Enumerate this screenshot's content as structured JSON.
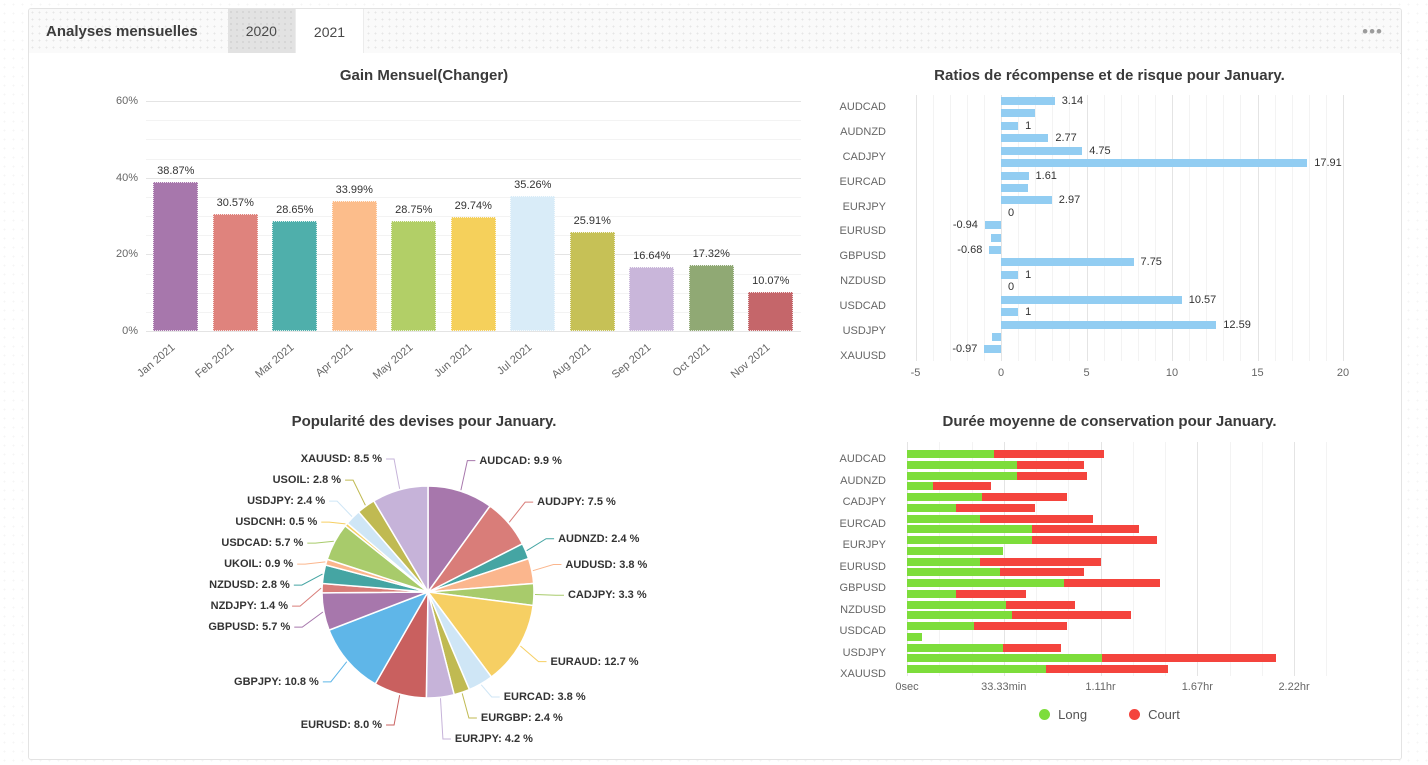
{
  "header": {
    "title": "Analyses mensuelles",
    "tabs": [
      {
        "label": "2020",
        "active": false
      },
      {
        "label": "2021",
        "active": true
      }
    ],
    "menu_glyph": "•••"
  },
  "colors": {
    "bar_blue": "#92cdf2",
    "long_green": "#7ddd3b",
    "court_red": "#f4443d",
    "grid_major": "#e4e4e4",
    "grid_minor": "#f3f3f3",
    "title_text": "#3a3a3a",
    "axis_text": "#666666",
    "value_text": "#333333"
  },
  "chart_data": [
    {
      "id": "monthly-gain",
      "type": "bar",
      "title": "Gain Mensuel(Changer)",
      "categories": [
        "Jan 2021",
        "Feb 2021",
        "Mar 2021",
        "Apr 2021",
        "May 2021",
        "Jun 2021",
        "Jul 2021",
        "Aug 2021",
        "Sep 2021",
        "Oct 2021",
        "Nov 2021"
      ],
      "values": [
        38.87,
        30.57,
        28.65,
        33.99,
        28.75,
        29.74,
        35.26,
        25.91,
        16.64,
        17.32,
        10.07
      ],
      "value_labels": [
        "38.87%",
        "30.57%",
        "28.65%",
        "33.99%",
        "28.75%",
        "29.74%",
        "35.26%",
        "25.91%",
        "16.64%",
        "17.32%",
        "10.07%"
      ],
      "bar_colors": [
        "#a777ac",
        "#df837d",
        "#4fafab",
        "#fcbd8b",
        "#b2cf67",
        "#f5d05b",
        "#d9ecf8",
        "#c6c156",
        "#c9b6da",
        "#90a974",
        "#c5666a"
      ],
      "ylabel": "",
      "xlabel": "",
      "ylim": [
        0,
        62
      ],
      "ytick_values": [
        0,
        20,
        40,
        60
      ],
      "ytick_labels": [
        "0%",
        "20%",
        "40%",
        "60%"
      ],
      "minor_step": 5,
      "grid": true
    },
    {
      "id": "reward-risk",
      "type": "bar",
      "title": "Ratios de récompense et de risque pour January.",
      "categories": [
        "AUDCAD",
        "AUDNZD",
        "CADJPY",
        "EURCAD",
        "EURJPY",
        "EURUSD",
        "GBPUSD",
        "NZDUSD",
        "USDCAD",
        "USDJPY",
        "XAUUSD"
      ],
      "series": [
        {
          "name": "ratio-1",
          "values": [
            3.14,
            1,
            4.75,
            1.61,
            2.97,
            -0.94,
            -0.68,
            1,
            10.57,
            12.59,
            -0.97
          ],
          "labels": [
            "3.14",
            "1",
            "4.75",
            "1.61",
            "2.97",
            "-0.94",
            "-0.68",
            "1",
            "10.57",
            "12.59",
            "-0.97"
          ]
        },
        {
          "name": "ratio-2",
          "values": [
            2,
            2.77,
            17.91,
            1.55,
            0,
            -0.6,
            7.75,
            0,
            1,
            -0.5,
            0
          ],
          "labels": [
            "",
            "2.77",
            "17.91",
            "",
            "0",
            "",
            "7.75",
            "0",
            "1",
            "",
            ""
          ]
        }
      ],
      "xlim": [
        -5.2,
        20.6
      ],
      "xtick_values": [
        -5,
        0,
        5,
        10,
        15,
        20
      ],
      "xtick_labels": [
        "-5",
        "0",
        "5",
        "10",
        "15",
        "20"
      ],
      "minor_unit": 1,
      "grid": true
    },
    {
      "id": "currency-popularity",
      "type": "pie",
      "title": "Popularité des devises pour January.",
      "slices": [
        {
          "name": "AUDCAD",
          "value": 9.9,
          "label": "AUDCAD: 9.9 %",
          "color": "#a777ac"
        },
        {
          "name": "AUDJPY",
          "value": 7.5,
          "label": "AUDJPY: 7.5 %",
          "color": "#d97d79"
        },
        {
          "name": "AUDNZD",
          "value": 2.4,
          "label": "AUDNZD: 2.4 %",
          "color": "#45a5a3"
        },
        {
          "name": "AUDUSD",
          "value": 3.8,
          "label": "AUDUSD: 3.8 %",
          "color": "#fbb68d"
        },
        {
          "name": "CADJPY",
          "value": 3.3,
          "label": "CADJPY: 3.3 %",
          "color": "#a8cb6b"
        },
        {
          "name": "EURAUD",
          "value": 12.7,
          "label": "EURAUD: 12.7 %",
          "color": "#f6cf63"
        },
        {
          "name": "EURCAD",
          "value": 3.8,
          "label": "EURCAD: 3.8 %",
          "color": "#cfe6f6"
        },
        {
          "name": "EURGBP",
          "value": 2.4,
          "label": "EURGBP: 2.4 %",
          "color": "#c0ba52"
        },
        {
          "name": "EURJPY",
          "value": 4.2,
          "label": "EURJPY: 4.2 %",
          "color": "#c6b3d9"
        },
        {
          "name": "EURUSD",
          "value": 8.0,
          "label": "EURUSD: 8.0 %",
          "color": "#c9605f"
        },
        {
          "name": "GBPJPY",
          "value": 10.8,
          "label": "GBPJPY: 10.8 %",
          "color": "#5fb6e8"
        },
        {
          "name": "GBPUSD",
          "value": 5.7,
          "label": "GBPUSD: 5.7 %",
          "color": "#a777ac"
        },
        {
          "name": "NZDJPY",
          "value": 1.4,
          "label": "NZDJPY: 1.4 %",
          "color": "#d97d79"
        },
        {
          "name": "NZDUSD",
          "value": 2.8,
          "label": "NZDUSD: 2.8 %",
          "color": "#45a5a3"
        },
        {
          "name": "UKOIL",
          "value": 0.9,
          "label": "UKOIL: 0.9 %",
          "color": "#fbb68d"
        },
        {
          "name": "USDCAD",
          "value": 5.7,
          "label": "USDCAD: 5.7 %",
          "color": "#a8cb6b"
        },
        {
          "name": "USDCNH",
          "value": 0.5,
          "label": "USDCNH: 0.5 %",
          "color": "#f6cf63"
        },
        {
          "name": "USDJPY",
          "value": 2.4,
          "label": "USDJPY: 2.4 %",
          "color": "#cfe6f6"
        },
        {
          "name": "USOIL",
          "value": 2.8,
          "label": "USOIL: 2.8 %",
          "color": "#c0ba52"
        },
        {
          "name": "XAUUSD",
          "value": 8.5,
          "label": "XAUUSD: 8.5 %",
          "color": "#c6b3d9"
        }
      ]
    },
    {
      "id": "holding-duration",
      "type": "bar",
      "title": "Durée moyenne de conservation pour January.",
      "categories": [
        "AUDCAD",
        "AUDNZD",
        "CADJPY",
        "EURCAD",
        "EURJPY",
        "EURUSD",
        "GBPUSD",
        "NZDUSD",
        "USDCAD",
        "USDJPY",
        "XAUUSD"
      ],
      "rows_minutes": [
        [
          [
            30,
            38
          ],
          [
            38,
            23
          ]
        ],
        [
          [
            38,
            24
          ],
          [
            9,
            20
          ]
        ],
        [
          [
            26,
            29
          ],
          [
            17,
            27
          ]
        ],
        [
          [
            25,
            39
          ],
          [
            43,
            37
          ]
        ],
        [
          [
            43,
            43
          ],
          [
            33,
            0
          ]
        ],
        [
          [
            25,
            42
          ],
          [
            32,
            29
          ]
        ],
        [
          [
            54,
            33
          ],
          [
            17,
            24
          ]
        ],
        [
          [
            34,
            24
          ],
          [
            36,
            41
          ]
        ],
        [
          [
            23,
            32
          ],
          [
            5,
            0
          ]
        ],
        [
          [
            33,
            20
          ],
          [
            67,
            60
          ]
        ],
        [
          [
            48,
            42
          ],
          [
            0,
            0
          ]
        ]
      ],
      "xtick_minutes": [
        0,
        33.33,
        66.67,
        100,
        133.33
      ],
      "xtick_labels": [
        "0sec",
        "33.33min",
        "1.11hr",
        "1.67hr",
        "2.22hr"
      ],
      "minor_step_minutes": 11.11,
      "legend": [
        {
          "label": "Long",
          "color": "#7ddd3b"
        },
        {
          "label": "Court",
          "color": "#f4443d"
        }
      ]
    }
  ]
}
